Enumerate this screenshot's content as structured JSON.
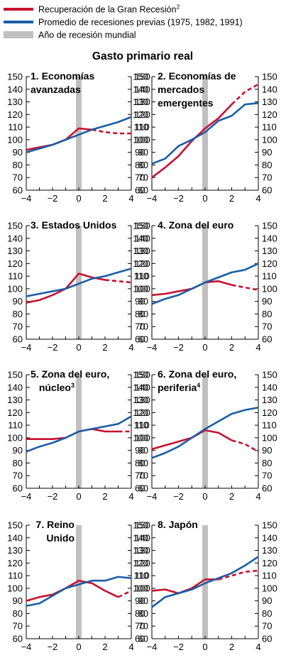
{
  "legend": {
    "items": [
      {
        "label": "Recuperación de la Gran Recesión",
        "sup": "2",
        "color": "#c8102e",
        "kind": "line"
      },
      {
        "label": "Promedio de recesiones previas (1975, 1982, 1991)",
        "sup": "",
        "color": "#1a5da6",
        "kind": "line"
      },
      {
        "label": "Año de recesión mundial",
        "sup": "",
        "color": "#c0c0c0",
        "kind": "box"
      }
    ]
  },
  "title": "Gasto primario real",
  "colors": {
    "red": "#c8102e",
    "blue": "#1a5da6",
    "recession_band": "#c0c0c0"
  },
  "chart_data": [
    {
      "type": "line",
      "title_lines": [
        "1. Economías",
        "avanzadas"
      ],
      "title_sup": "",
      "title_align": "right",
      "ylim": [
        60,
        150
      ],
      "yticks": [
        60,
        70,
        80,
        90,
        100,
        110,
        120,
        130,
        140,
        150
      ],
      "xlim": [
        -4,
        4
      ],
      "xticks": [
        -4,
        -2,
        0,
        2,
        4
      ],
      "xtick_labels": [
        "−4",
        "−2",
        "0",
        "2",
        "4"
      ],
      "recession_year": 0,
      "series": [
        {
          "color": "red",
          "x": [
            -4,
            -3,
            -2,
            -1,
            0,
            1,
            2,
            3,
            4
          ],
          "values": [
            92,
            94,
            96,
            100,
            109,
            108,
            106,
            105,
            105
          ],
          "dashed_from_x": 1
        },
        {
          "color": "blue",
          "x": [
            -4,
            -3,
            -2,
            -1,
            0,
            1,
            2,
            3,
            4
          ],
          "values": [
            90,
            93,
            96,
            100,
            104,
            108,
            111,
            114,
            118
          ]
        }
      ]
    },
    {
      "type": "line",
      "title_lines": [
        "2. Economías de",
        "mercados",
        "emergentes"
      ],
      "title_sup": "",
      "title_align": "left",
      "ylim": [
        60,
        150
      ],
      "yticks": [
        60,
        70,
        80,
        90,
        100,
        110,
        120,
        130,
        140,
        150
      ],
      "xlim": [
        -4,
        4
      ],
      "xticks": [
        -4,
        -2,
        0,
        2,
        4
      ],
      "xtick_labels": [
        "−4",
        "−2",
        "0",
        "2",
        "4"
      ],
      "recession_year": 0,
      "series": [
        {
          "color": "red",
          "x": [
            -4,
            -3,
            -2,
            -1,
            0,
            1,
            2,
            3,
            4
          ],
          "values": [
            70,
            78,
            87,
            99,
            109,
            117,
            128,
            138,
            144
          ],
          "dashed_from_x": 2
        },
        {
          "color": "blue",
          "x": [
            -4,
            -3,
            -2,
            -1,
            0,
            1,
            2,
            3,
            4
          ],
          "values": [
            81,
            85,
            95,
            100,
            106,
            115,
            119,
            128,
            129
          ]
        }
      ]
    },
    {
      "type": "line",
      "title_lines": [
        "3. Estados Unidos"
      ],
      "title_sup": "",
      "title_align": "right",
      "ylim": [
        60,
        150
      ],
      "yticks": [
        60,
        70,
        80,
        90,
        100,
        110,
        120,
        130,
        140,
        150
      ],
      "xlim": [
        -4,
        4
      ],
      "xticks": [
        -4,
        -2,
        0,
        2,
        4
      ],
      "xtick_labels": [
        "−4",
        "−2",
        "0",
        "2",
        "4"
      ],
      "recession_year": 0,
      "series": [
        {
          "color": "red",
          "x": [
            -4,
            -3,
            -2,
            -1,
            0,
            1,
            2,
            3,
            4
          ],
          "values": [
            89,
            91,
            95,
            100,
            112,
            109,
            107,
            106,
            105
          ],
          "dashed_from_x": 2
        },
        {
          "color": "blue",
          "x": [
            -4,
            -3,
            -2,
            -1,
            0,
            1,
            2,
            3,
            4
          ],
          "values": [
            94,
            96,
            98,
            100,
            104,
            108,
            110,
            113,
            116
          ]
        }
      ]
    },
    {
      "type": "line",
      "title_lines": [
        "4. Zona del euro"
      ],
      "title_sup": "",
      "title_align": "left",
      "ylim": [
        60,
        150
      ],
      "yticks": [
        60,
        70,
        80,
        90,
        100,
        110,
        120,
        130,
        140,
        150
      ],
      "xlim": [
        -4,
        4
      ],
      "xticks": [
        -4,
        -2,
        0,
        2,
        4
      ],
      "xtick_labels": [
        "−4",
        "−2",
        "0",
        "2",
        "4"
      ],
      "recession_year": 0,
      "series": [
        {
          "color": "red",
          "x": [
            -4,
            -3,
            -2,
            -1,
            0,
            1,
            2,
            3,
            4
          ],
          "values": [
            95,
            96,
            98,
            100,
            105,
            106,
            103,
            101,
            99
          ],
          "dashed_from_x": 2
        },
        {
          "color": "blue",
          "x": [
            -4,
            -3,
            -2,
            -1,
            0,
            1,
            2,
            3,
            4
          ],
          "values": [
            88,
            92,
            95,
            100,
            105,
            109,
            113,
            115,
            120
          ]
        }
      ]
    },
    {
      "type": "line",
      "title_lines": [
        "5. Zona del euro,",
        "núcleo"
      ],
      "title_sup": "3",
      "title_align": "right",
      "ylim": [
        60,
        150
      ],
      "yticks": [
        60,
        70,
        80,
        90,
        100,
        110,
        120,
        130,
        140,
        150
      ],
      "xlim": [
        -4,
        4
      ],
      "xticks": [
        -4,
        -2,
        0,
        2,
        4
      ],
      "xtick_labels": [
        "−4",
        "−2",
        "0",
        "2",
        "4"
      ],
      "recession_year": 0,
      "series": [
        {
          "color": "red",
          "x": [
            -4,
            -3,
            -2,
            -1,
            0,
            1,
            2,
            3,
            4
          ],
          "values": [
            99,
            99,
            99,
            100,
            105,
            107,
            105,
            105,
            105
          ],
          "dashed_from_x": 3
        },
        {
          "color": "blue",
          "x": [
            -4,
            -3,
            -2,
            -1,
            0,
            1,
            2,
            3,
            4
          ],
          "values": [
            89,
            93,
            96,
            100,
            105,
            107,
            109,
            111,
            117
          ]
        }
      ]
    },
    {
      "type": "line",
      "title_lines": [
        "6. Zona del euro,",
        "periferia"
      ],
      "title_sup": "4",
      "title_align": "left",
      "ylim": [
        60,
        150
      ],
      "yticks": [
        60,
        70,
        80,
        90,
        100,
        110,
        120,
        130,
        140,
        150
      ],
      "xlim": [
        -4,
        4
      ],
      "xticks": [
        -4,
        -2,
        0,
        2,
        4
      ],
      "xtick_labels": [
        "−4",
        "−2",
        "0",
        "2",
        "4"
      ],
      "recession_year": 0,
      "series": [
        {
          "color": "red",
          "x": [
            -4,
            -3,
            -2,
            -1,
            0,
            1,
            2,
            3,
            4
          ],
          "values": [
            91,
            94,
            97,
            100,
            106,
            104,
            98,
            95,
            89
          ],
          "dashed_from_x": 2
        },
        {
          "color": "blue",
          "x": [
            -4,
            -3,
            -2,
            -1,
            0,
            1,
            2,
            3,
            4
          ],
          "values": [
            84,
            88,
            93,
            100,
            107,
            113,
            119,
            122,
            124
          ]
        }
      ]
    },
    {
      "type": "line",
      "title_lines": [
        "7.  Reino",
        "Unido"
      ],
      "title_sup": "",
      "title_align": "right",
      "ylim": [
        60,
        150
      ],
      "yticks": [
        60,
        70,
        80,
        90,
        100,
        110,
        120,
        130,
        140,
        150
      ],
      "xlim": [
        -4,
        4
      ],
      "xticks": [
        -4,
        -2,
        0,
        2,
        4
      ],
      "xtick_labels": [
        "−4",
        "−2",
        "0",
        "2",
        "4"
      ],
      "recession_year": 0,
      "series": [
        {
          "color": "red",
          "x": [
            -4,
            -3,
            -2,
            -1,
            0,
            1,
            2,
            3,
            4
          ],
          "values": [
            90,
            93,
            95,
            100,
            106,
            104,
            98,
            93,
            98
          ],
          "dashed_from_x": 3
        },
        {
          "color": "blue",
          "x": [
            -4,
            -3,
            -2,
            -1,
            0,
            1,
            2,
            3,
            4
          ],
          "values": [
            86,
            88,
            94,
            100,
            103,
            106,
            106,
            109,
            108
          ]
        }
      ]
    },
    {
      "type": "line",
      "title_lines": [
        "8. Japón"
      ],
      "title_sup": "",
      "title_align": "left",
      "ylim": [
        60,
        150
      ],
      "yticks": [
        60,
        70,
        80,
        90,
        100,
        110,
        120,
        130,
        140,
        150
      ],
      "xlim": [
        -4,
        4
      ],
      "xticks": [
        -4,
        -2,
        0,
        2,
        4
      ],
      "xtick_labels": [
        "−4",
        "−2",
        "0",
        "2",
        "4"
      ],
      "recession_year": 0,
      "series": [
        {
          "color": "red",
          "x": [
            -4,
            -3,
            -2,
            -1,
            0,
            1,
            2,
            3,
            4
          ],
          "values": [
            98,
            99,
            96,
            100,
            107,
            107,
            110,
            113,
            114
          ],
          "dashed_from_x": 1
        },
        {
          "color": "blue",
          "x": [
            -4,
            -3,
            -2,
            -1,
            0,
            1,
            2,
            3,
            4
          ],
          "values": [
            85,
            93,
            96,
            99,
            104,
            108,
            112,
            118,
            125
          ]
        }
      ]
    }
  ]
}
